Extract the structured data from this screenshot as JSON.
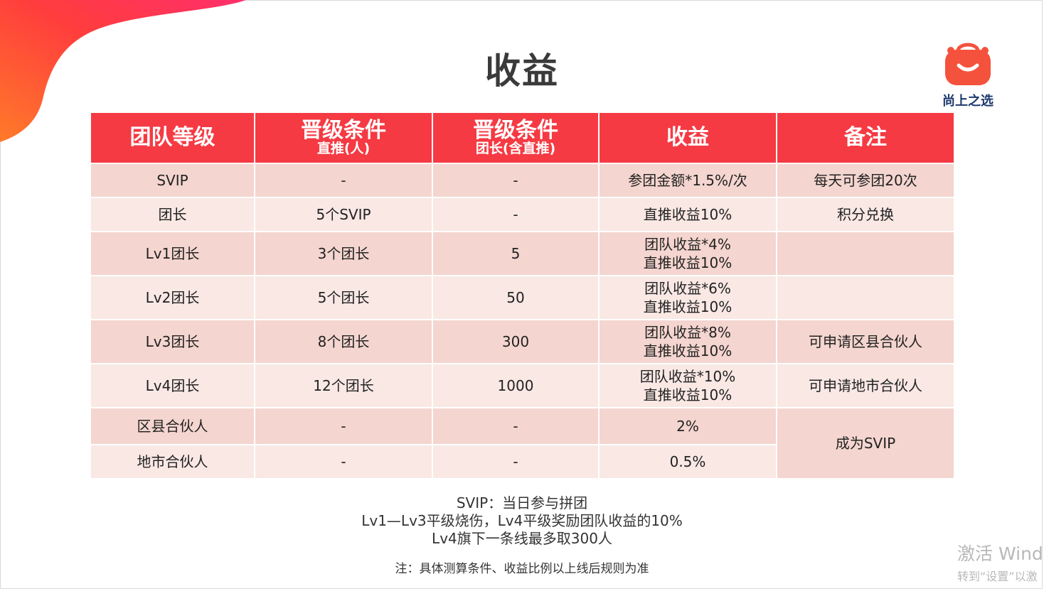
{
  "title": "收益",
  "logo": {
    "name": "尚上之选",
    "icon": "shopping-bag-smile-icon"
  },
  "colors": {
    "header_red": "#f53a43",
    "row_dark": "#f4d5cf",
    "row_light": "#f9e8e4",
    "logo_orange": "#f4523c"
  },
  "table": {
    "headers": [
      {
        "main": "团队等级",
        "sub": ""
      },
      {
        "main": "晋级条件",
        "sub": "直推(人)"
      },
      {
        "main": "晋级条件",
        "sub": "团长(含直推)"
      },
      {
        "main": "收益",
        "sub": ""
      },
      {
        "main": "备注",
        "sub": ""
      }
    ],
    "rows": [
      {
        "level": "SVIP",
        "direct": "-",
        "leaders": "-",
        "income": [
          "参团金额*1.5%/次"
        ],
        "note": "每天可参团20次"
      },
      {
        "level": "团长",
        "direct": "5个SVIP",
        "leaders": "-",
        "income": [
          "直推收益10%"
        ],
        "note": "积分兑换"
      },
      {
        "level": "Lv1团长",
        "direct": "3个团长",
        "leaders": "5",
        "income": [
          "团队收益*4%",
          "直推收益10%"
        ],
        "note": ""
      },
      {
        "level": "Lv2团长",
        "direct": "5个团长",
        "leaders": "50",
        "income": [
          "团队收益*6%",
          "直推收益10%"
        ],
        "note": ""
      },
      {
        "level": "Lv3团长",
        "direct": "8个团长",
        "leaders": "300",
        "income": [
          "团队收益*8%",
          "直推收益10%"
        ],
        "note": "可申请区县合伙人"
      },
      {
        "level": "Lv4团长",
        "direct": "12个团长",
        "leaders": "1000",
        "income": [
          "团队收益*10%",
          "直推收益10%"
        ],
        "note": "可申请地市合伙人"
      },
      {
        "level": "区县合伙人",
        "direct": "-",
        "leaders": "-",
        "income": [
          "2%"
        ],
        "note": "成为SVIP"
      },
      {
        "level": "地市合伙人",
        "direct": "-",
        "leaders": "-",
        "income": [
          "0.5%"
        ],
        "note": ""
      }
    ]
  },
  "notes": [
    "SVIP：当日参与拼团",
    "Lv1—Lv3平级烧伤，Lv4平级奖励团队收益的10%",
    "Lv4旗下一条线最多取300人"
  ],
  "footnote": "注：具体测算条件、收益比例以上线后规则为准",
  "watermark": {
    "line1": "激活 Wind",
    "line2": "转到“设置”以激"
  }
}
